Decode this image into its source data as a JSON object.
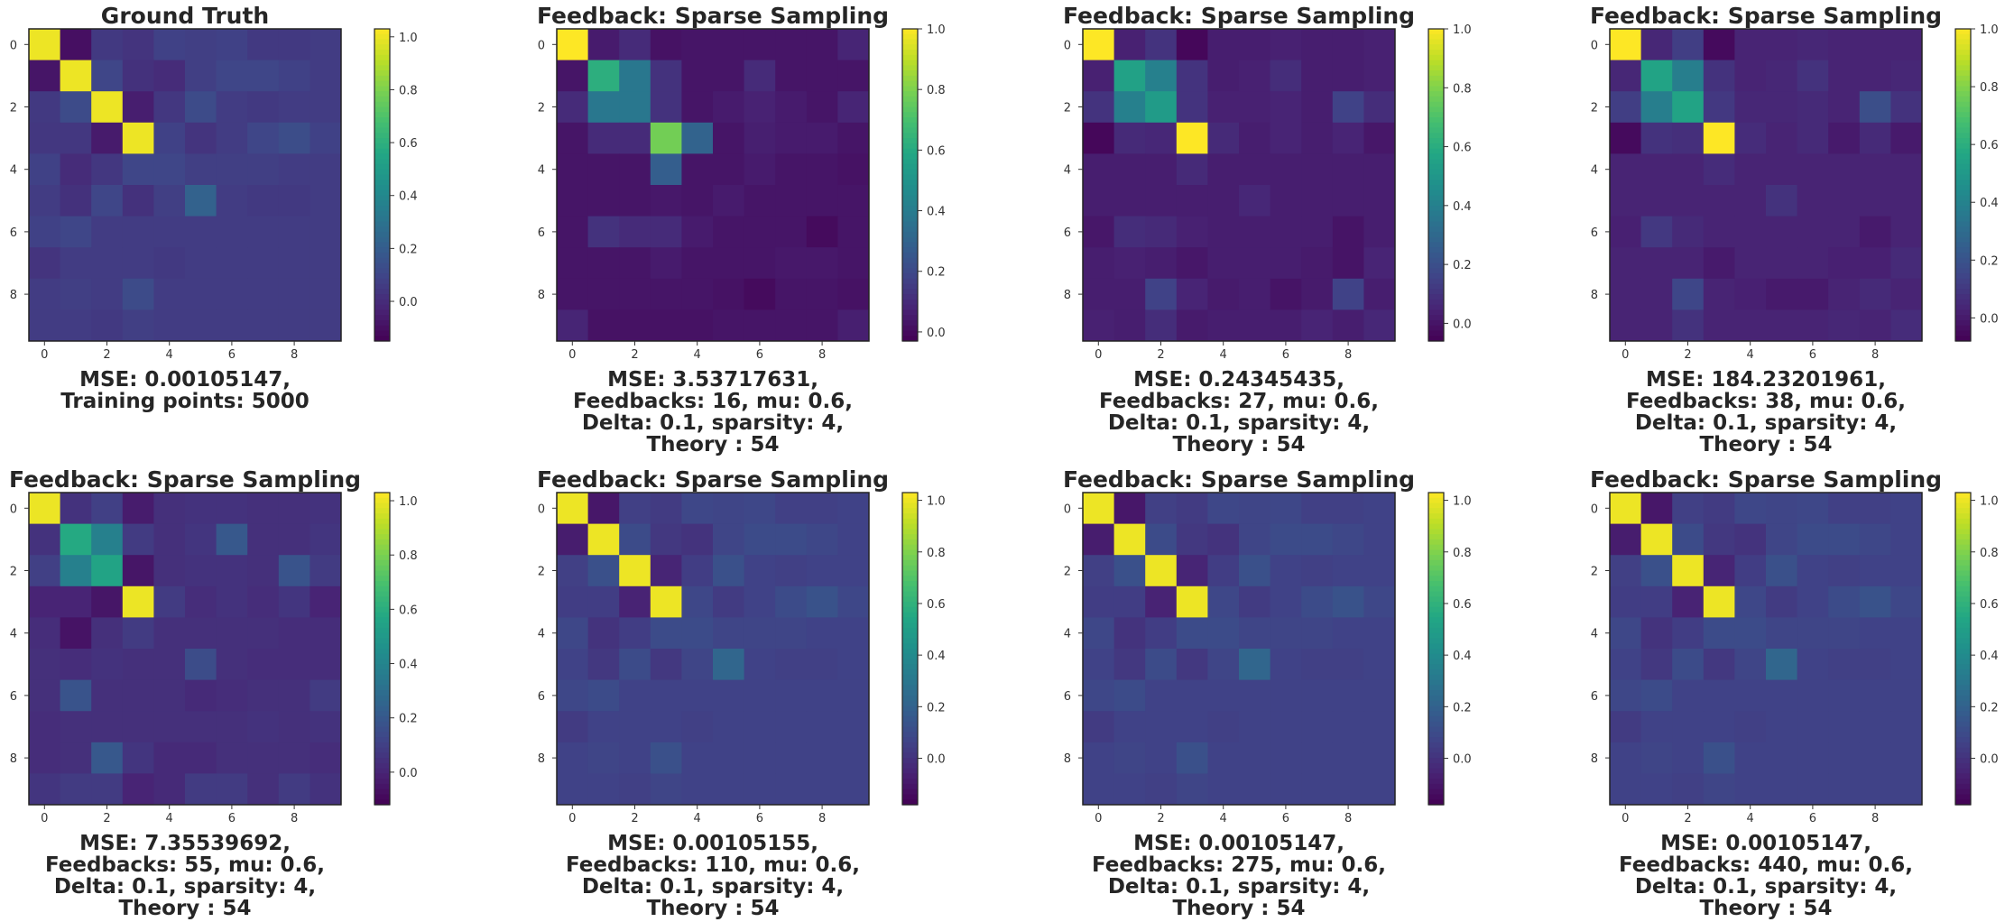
{
  "chart_data": [
    {
      "type": "heatmap",
      "title": "Ground Truth",
      "caption": [
        "MSE: 0.00105147,",
        "Training points: 5000"
      ],
      "colormap": "viridis",
      "vmin": -0.15,
      "vmax": 1.03,
      "colorbar_ticks": [
        "1.0",
        "0.8",
        "0.6",
        "0.4",
        "0.2",
        "0.0"
      ],
      "x_ticks": [
        "0",
        "2",
        "4",
        "6",
        "8"
      ],
      "y_ticks": [
        "0",
        "2",
        "4",
        "6",
        "8"
      ],
      "matrix": [
        [
          1.0,
          -0.1,
          0.05,
          0.03,
          0.08,
          0.07,
          0.08,
          0.05,
          0.05,
          0.06
        ],
        [
          -0.08,
          1.0,
          0.1,
          0.02,
          0.0,
          0.07,
          0.1,
          0.1,
          0.08,
          0.06
        ],
        [
          0.05,
          0.12,
          1.0,
          -0.05,
          0.04,
          0.12,
          0.06,
          0.05,
          0.06,
          0.06
        ],
        [
          0.04,
          0.04,
          -0.06,
          1.0,
          0.08,
          0.03,
          0.06,
          0.1,
          0.13,
          0.08
        ],
        [
          0.08,
          0.0,
          0.04,
          0.1,
          0.1,
          0.07,
          0.07,
          0.07,
          0.06,
          0.06
        ],
        [
          0.06,
          0.02,
          0.1,
          0.02,
          0.07,
          0.22,
          0.06,
          0.05,
          0.05,
          0.06
        ],
        [
          0.08,
          0.1,
          0.06,
          0.06,
          0.06,
          0.06,
          0.06,
          0.06,
          0.06,
          0.06
        ],
        [
          0.03,
          0.06,
          0.06,
          0.06,
          0.05,
          0.06,
          0.06,
          0.06,
          0.06,
          0.06
        ],
        [
          0.06,
          0.07,
          0.06,
          0.12,
          0.06,
          0.06,
          0.06,
          0.06,
          0.06,
          0.06
        ],
        [
          0.06,
          0.06,
          0.05,
          0.07,
          0.06,
          0.06,
          0.06,
          0.06,
          0.06,
          0.06
        ]
      ]
    },
    {
      "type": "heatmap",
      "title": "Feedback: Sparse Sampling",
      "caption": [
        "MSE: 3.53717631,",
        "Feedbacks: 16, mu: 0.6,",
        "Delta: 0.1, sparsity: 4,",
        "Theory : 54"
      ],
      "colormap": "viridis",
      "vmin": -0.03,
      "vmax": 1.0,
      "colorbar_ticks": [
        "1.0",
        "0.8",
        "0.6",
        "0.4",
        "0.2",
        "0.0"
      ],
      "x_ticks": [
        "0",
        "2",
        "4",
        "6",
        "8"
      ],
      "y_ticks": [
        "0",
        "2",
        "4",
        "6",
        "8"
      ],
      "matrix": [
        [
          1.0,
          0.05,
          0.1,
          0.02,
          0.03,
          0.03,
          0.03,
          0.03,
          0.03,
          0.08
        ],
        [
          0.03,
          0.62,
          0.38,
          0.12,
          0.03,
          0.03,
          0.1,
          0.03,
          0.03,
          0.03
        ],
        [
          0.1,
          0.38,
          0.38,
          0.12,
          0.03,
          0.05,
          0.07,
          0.05,
          0.03,
          0.08
        ],
        [
          0.03,
          0.1,
          0.1,
          0.78,
          0.3,
          0.03,
          0.06,
          0.05,
          0.05,
          0.03
        ],
        [
          0.03,
          0.03,
          0.03,
          0.28,
          0.03,
          0.03,
          0.05,
          0.03,
          0.03,
          0.02
        ],
        [
          0.03,
          0.03,
          0.03,
          0.04,
          0.03,
          0.05,
          0.03,
          0.03,
          0.03,
          0.03
        ],
        [
          0.03,
          0.12,
          0.1,
          0.1,
          0.05,
          0.03,
          0.03,
          0.03,
          0.0,
          0.03
        ],
        [
          0.03,
          0.03,
          0.03,
          0.05,
          0.03,
          0.03,
          0.03,
          0.04,
          0.04,
          0.03
        ],
        [
          0.03,
          0.03,
          0.03,
          0.03,
          0.03,
          0.02,
          0.0,
          0.03,
          0.03,
          0.02
        ],
        [
          0.08,
          0.02,
          0.02,
          0.02,
          0.02,
          0.03,
          0.03,
          0.03,
          0.03,
          0.06
        ]
      ]
    },
    {
      "type": "heatmap",
      "title": "Feedback: Sparse Sampling",
      "caption": [
        "MSE: 0.24345435,",
        "Feedbacks: 27, mu: 0.6,",
        "Delta: 0.1, sparsity: 4,",
        "Theory : 54"
      ],
      "colormap": "viridis",
      "vmin": -0.06,
      "vmax": 1.0,
      "colorbar_ticks": [
        "1.0",
        "0.8",
        "0.6",
        "0.4",
        "0.2",
        "0.0"
      ],
      "x_ticks": [
        "0",
        "2",
        "4",
        "6",
        "8"
      ],
      "y_ticks": [
        "0",
        "2",
        "4",
        "6",
        "8"
      ],
      "matrix": [
        [
          1.0,
          0.04,
          0.1,
          -0.04,
          0.03,
          0.03,
          0.04,
          0.03,
          0.03,
          0.04
        ],
        [
          0.04,
          0.55,
          0.4,
          0.1,
          0.03,
          0.04,
          0.08,
          0.03,
          0.03,
          0.04
        ],
        [
          0.1,
          0.4,
          0.52,
          0.1,
          0.04,
          0.04,
          0.05,
          0.03,
          0.15,
          0.08
        ],
        [
          -0.04,
          0.07,
          0.06,
          1.0,
          0.07,
          0.03,
          0.05,
          0.03,
          0.05,
          0.01
        ],
        [
          0.03,
          0.03,
          0.03,
          0.07,
          0.03,
          0.03,
          0.03,
          0.03,
          0.03,
          0.03
        ],
        [
          0.03,
          0.03,
          0.03,
          0.03,
          0.03,
          0.06,
          0.03,
          0.03,
          0.03,
          0.03
        ],
        [
          0.01,
          0.08,
          0.07,
          0.04,
          0.03,
          0.03,
          0.03,
          0.03,
          0.0,
          0.03
        ],
        [
          0.03,
          0.04,
          0.03,
          0.01,
          0.03,
          0.03,
          0.03,
          0.02,
          0.0,
          0.05
        ],
        [
          0.03,
          0.03,
          0.15,
          0.05,
          0.02,
          0.03,
          0.0,
          0.02,
          0.15,
          0.03
        ],
        [
          0.04,
          0.03,
          0.08,
          0.02,
          0.03,
          0.03,
          0.03,
          0.05,
          0.03,
          0.06
        ]
      ]
    },
    {
      "type": "heatmap",
      "title": "Feedback: Sparse Sampling",
      "caption": [
        "MSE: 184.23201961,",
        "Feedbacks: 38, mu: 0.6,",
        "Delta: 0.1, sparsity: 4,",
        "Theory : 54"
      ],
      "colormap": "viridis",
      "vmin": -0.08,
      "vmax": 1.0,
      "colorbar_ticks": [
        "1.0",
        "0.8",
        "0.6",
        "0.4",
        "0.2",
        "0.0"
      ],
      "x_ticks": [
        "0",
        "2",
        "4",
        "6",
        "8"
      ],
      "y_ticks": [
        "0",
        "2",
        "4",
        "6",
        "8"
      ],
      "matrix": [
        [
          1.0,
          0.04,
          0.12,
          -0.05,
          0.03,
          0.03,
          0.04,
          0.03,
          0.03,
          0.03
        ],
        [
          0.04,
          0.55,
          0.38,
          0.08,
          0.03,
          0.04,
          0.08,
          0.03,
          0.03,
          0.04
        ],
        [
          0.12,
          0.38,
          0.55,
          0.1,
          0.04,
          0.04,
          0.05,
          0.03,
          0.18,
          0.08
        ],
        [
          -0.05,
          0.08,
          0.07,
          1.0,
          0.06,
          0.03,
          0.05,
          0.0,
          0.05,
          0.0
        ],
        [
          0.03,
          0.03,
          0.03,
          0.06,
          0.03,
          0.03,
          0.03,
          0.03,
          0.03,
          0.03
        ],
        [
          0.03,
          0.03,
          0.03,
          0.03,
          0.03,
          0.08,
          0.03,
          0.03,
          0.03,
          0.03
        ],
        [
          0.02,
          0.1,
          0.05,
          0.03,
          0.03,
          0.03,
          0.03,
          0.03,
          0.0,
          0.03
        ],
        [
          0.03,
          0.03,
          0.03,
          0.0,
          0.03,
          0.03,
          0.03,
          0.02,
          0.02,
          0.05
        ],
        [
          0.03,
          0.03,
          0.15,
          0.03,
          0.02,
          0.0,
          0.0,
          0.03,
          0.05,
          0.03
        ],
        [
          0.03,
          0.03,
          0.08,
          0.03,
          0.03,
          0.03,
          0.03,
          0.04,
          0.03,
          0.06
        ]
      ]
    },
    {
      "type": "heatmap",
      "title": "Feedback: Sparse Sampling",
      "caption": [
        "MSE: 7.35539692,",
        "Feedbacks: 55, mu: 0.6,",
        "Delta: 0.1, sparsity: 4,",
        "Theory : 54"
      ],
      "colormap": "viridis",
      "vmin": -0.12,
      "vmax": 1.03,
      "colorbar_ticks": [
        "1.0",
        "0.8",
        "0.6",
        "0.4",
        "0.2",
        "0.0"
      ],
      "x_ticks": [
        "0",
        "2",
        "4",
        "6",
        "8"
      ],
      "y_ticks": [
        "0",
        "2",
        "4",
        "6",
        "8"
      ],
      "matrix": [
        [
          1.0,
          0.05,
          0.1,
          -0.03,
          0.04,
          0.05,
          0.05,
          0.04,
          0.04,
          0.05
        ],
        [
          0.05,
          0.58,
          0.38,
          0.08,
          0.04,
          0.06,
          0.2,
          0.04,
          0.04,
          0.06
        ],
        [
          0.1,
          0.38,
          0.55,
          -0.05,
          0.04,
          0.05,
          0.05,
          0.04,
          0.18,
          0.08
        ],
        [
          0.0,
          0.0,
          -0.05,
          1.0,
          0.08,
          0.03,
          0.05,
          0.03,
          0.06,
          0.0
        ],
        [
          0.03,
          -0.06,
          0.04,
          0.08,
          0.04,
          0.04,
          0.04,
          0.04,
          0.03,
          0.03
        ],
        [
          0.04,
          0.03,
          0.05,
          0.04,
          0.04,
          0.15,
          0.04,
          0.03,
          0.03,
          0.03
        ],
        [
          0.04,
          0.18,
          0.04,
          0.04,
          0.04,
          0.02,
          0.03,
          0.04,
          0.04,
          0.08
        ],
        [
          0.03,
          0.04,
          0.04,
          0.04,
          0.04,
          0.04,
          0.04,
          0.05,
          0.04,
          0.05
        ],
        [
          0.03,
          0.04,
          0.2,
          0.06,
          0.02,
          0.02,
          0.04,
          0.04,
          0.04,
          0.03
        ],
        [
          0.06,
          0.08,
          0.08,
          0.0,
          0.02,
          0.08,
          0.08,
          0.04,
          0.08,
          0.05
        ]
      ]
    },
    {
      "type": "heatmap",
      "title": "Feedback: Sparse Sampling",
      "caption": [
        "MSE: 0.00105155,",
        "Feedbacks: 110, mu: 0.6,",
        "Delta: 0.1, sparsity: 4,",
        "Theory : 54"
      ],
      "colormap": "viridis",
      "vmin": -0.18,
      "vmax": 1.03,
      "colorbar_ticks": [
        "1.0",
        "0.8",
        "0.6",
        "0.4",
        "0.2",
        "0.0"
      ],
      "x_ticks": [
        "0",
        "2",
        "4",
        "6",
        "8"
      ],
      "y_ticks": [
        "0",
        "2",
        "4",
        "6",
        "8"
      ],
      "matrix": [
        [
          1.0,
          -0.1,
          0.05,
          0.03,
          0.08,
          0.07,
          0.08,
          0.05,
          0.05,
          0.06
        ],
        [
          -0.08,
          1.0,
          0.1,
          0.02,
          0.0,
          0.07,
          0.1,
          0.1,
          0.08,
          0.06
        ],
        [
          0.05,
          0.12,
          1.0,
          -0.05,
          0.04,
          0.12,
          0.06,
          0.05,
          0.06,
          0.06
        ],
        [
          0.04,
          0.04,
          -0.06,
          1.0,
          0.08,
          0.03,
          0.06,
          0.1,
          0.13,
          0.08
        ],
        [
          0.08,
          0.0,
          0.04,
          0.1,
          0.1,
          0.07,
          0.07,
          0.07,
          0.06,
          0.06
        ],
        [
          0.06,
          0.02,
          0.1,
          0.02,
          0.07,
          0.22,
          0.06,
          0.05,
          0.05,
          0.06
        ],
        [
          0.08,
          0.1,
          0.06,
          0.06,
          0.06,
          0.06,
          0.06,
          0.06,
          0.06,
          0.06
        ],
        [
          0.03,
          0.06,
          0.06,
          0.06,
          0.05,
          0.06,
          0.06,
          0.06,
          0.06,
          0.06
        ],
        [
          0.06,
          0.07,
          0.06,
          0.12,
          0.06,
          0.06,
          0.06,
          0.06,
          0.06,
          0.06
        ],
        [
          0.06,
          0.06,
          0.05,
          0.07,
          0.06,
          0.06,
          0.06,
          0.06,
          0.06,
          0.06
        ]
      ]
    },
    {
      "type": "heatmap",
      "title": "Feedback: Sparse Sampling",
      "caption": [
        "MSE: 0.00105147,",
        "Feedbacks: 275, mu: 0.6,",
        "Delta: 0.1, sparsity: 4,",
        "Theory : 54"
      ],
      "colormap": "viridis",
      "vmin": -0.18,
      "vmax": 1.03,
      "colorbar_ticks": [
        "1.0",
        "0.8",
        "0.6",
        "0.4",
        "0.2",
        "0.0"
      ],
      "x_ticks": [
        "0",
        "2",
        "4",
        "6",
        "8"
      ],
      "y_ticks": [
        "0",
        "2",
        "4",
        "6",
        "8"
      ],
      "matrix": [
        [
          1.0,
          -0.1,
          0.05,
          0.03,
          0.08,
          0.07,
          0.08,
          0.05,
          0.05,
          0.06
        ],
        [
          -0.08,
          1.0,
          0.1,
          0.02,
          0.0,
          0.07,
          0.1,
          0.1,
          0.08,
          0.06
        ],
        [
          0.05,
          0.12,
          1.0,
          -0.05,
          0.04,
          0.12,
          0.06,
          0.05,
          0.06,
          0.06
        ],
        [
          0.04,
          0.04,
          -0.06,
          1.0,
          0.08,
          0.03,
          0.06,
          0.1,
          0.13,
          0.08
        ],
        [
          0.08,
          0.0,
          0.04,
          0.1,
          0.1,
          0.07,
          0.07,
          0.07,
          0.06,
          0.06
        ],
        [
          0.06,
          0.02,
          0.1,
          0.02,
          0.07,
          0.22,
          0.06,
          0.05,
          0.05,
          0.06
        ],
        [
          0.08,
          0.1,
          0.06,
          0.06,
          0.06,
          0.06,
          0.06,
          0.06,
          0.06,
          0.06
        ],
        [
          0.03,
          0.06,
          0.06,
          0.06,
          0.05,
          0.06,
          0.06,
          0.06,
          0.06,
          0.06
        ],
        [
          0.06,
          0.07,
          0.06,
          0.12,
          0.06,
          0.06,
          0.06,
          0.06,
          0.06,
          0.06
        ],
        [
          0.06,
          0.06,
          0.05,
          0.07,
          0.06,
          0.06,
          0.06,
          0.06,
          0.06,
          0.06
        ]
      ]
    },
    {
      "type": "heatmap",
      "title": "Feedback: Sparse Sampling",
      "caption": [
        "MSE: 0.00105147,",
        "Feedbacks: 440, mu: 0.6,",
        "Delta: 0.1, sparsity: 4,",
        "Theory : 54"
      ],
      "colormap": "viridis",
      "vmin": -0.18,
      "vmax": 1.03,
      "colorbar_ticks": [
        "1.0",
        "0.8",
        "0.6",
        "0.4",
        "0.2",
        "0.0"
      ],
      "x_ticks": [
        "0",
        "2",
        "4",
        "6",
        "8"
      ],
      "y_ticks": [
        "0",
        "2",
        "4",
        "6",
        "8"
      ],
      "matrix": [
        [
          1.0,
          -0.1,
          0.05,
          0.03,
          0.08,
          0.07,
          0.08,
          0.05,
          0.05,
          0.06
        ],
        [
          -0.08,
          1.0,
          0.1,
          0.02,
          0.0,
          0.07,
          0.1,
          0.1,
          0.08,
          0.06
        ],
        [
          0.05,
          0.12,
          1.0,
          -0.05,
          0.04,
          0.12,
          0.06,
          0.05,
          0.06,
          0.06
        ],
        [
          0.04,
          0.04,
          -0.06,
          1.0,
          0.08,
          0.03,
          0.06,
          0.1,
          0.13,
          0.08
        ],
        [
          0.08,
          0.0,
          0.04,
          0.1,
          0.1,
          0.07,
          0.07,
          0.07,
          0.06,
          0.06
        ],
        [
          0.06,
          0.02,
          0.1,
          0.02,
          0.07,
          0.22,
          0.06,
          0.05,
          0.05,
          0.06
        ],
        [
          0.08,
          0.1,
          0.06,
          0.06,
          0.06,
          0.06,
          0.06,
          0.06,
          0.06,
          0.06
        ],
        [
          0.03,
          0.06,
          0.06,
          0.06,
          0.05,
          0.06,
          0.06,
          0.06,
          0.06,
          0.06
        ],
        [
          0.06,
          0.07,
          0.06,
          0.12,
          0.06,
          0.06,
          0.06,
          0.06,
          0.06,
          0.06
        ],
        [
          0.06,
          0.06,
          0.05,
          0.07,
          0.06,
          0.06,
          0.06,
          0.06,
          0.06,
          0.06
        ]
      ]
    }
  ]
}
